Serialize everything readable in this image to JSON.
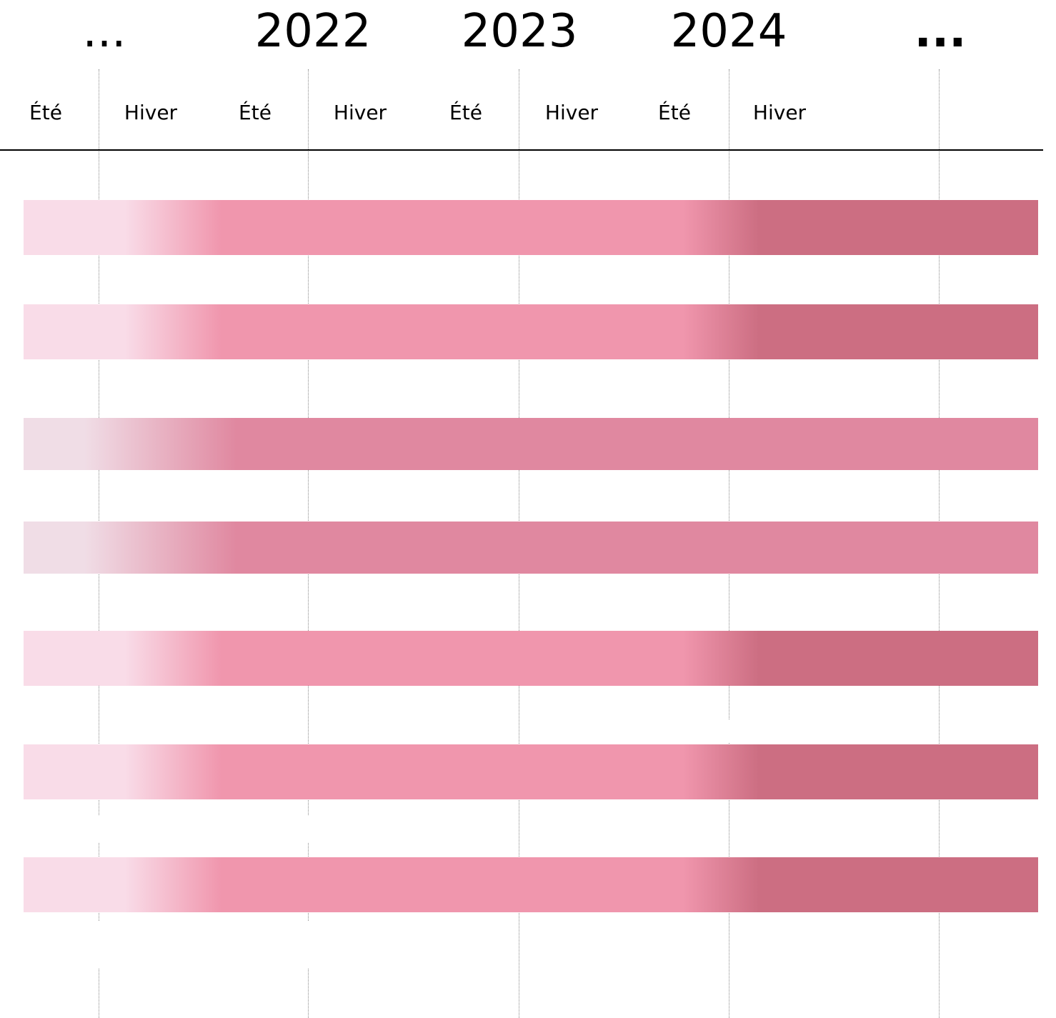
{
  "timeline": {
    "years": [
      {
        "label": "..."
      },
      {
        "label": "2022"
      },
      {
        "label": "2023"
      },
      {
        "label": "2024"
      },
      {
        "label": "..."
      }
    ],
    "seasons": [
      {
        "label": "Été"
      },
      {
        "label": "Hiver"
      },
      {
        "label": "Été"
      },
      {
        "label": "Hiver"
      },
      {
        "label": "Été"
      },
      {
        "label": "Hiver"
      },
      {
        "label": "Été"
      },
      {
        "label": "Hiver"
      }
    ]
  },
  "colors": {
    "rose_light": "#f9dce8",
    "rose_mid": "#f096ad",
    "rose_dark": "#cc6e82",
    "mauve_light": "#f0dde6",
    "mauve": "#e088a0",
    "gridline": "#8a8a8a"
  },
  "bars": [
    {
      "palette": "rose"
    },
    {
      "palette": "rose"
    },
    {
      "palette": "mauve"
    },
    {
      "palette": "mauve"
    },
    {
      "palette": "rose"
    },
    {
      "palette": "rose"
    },
    {
      "palette": "rose"
    }
  ]
}
